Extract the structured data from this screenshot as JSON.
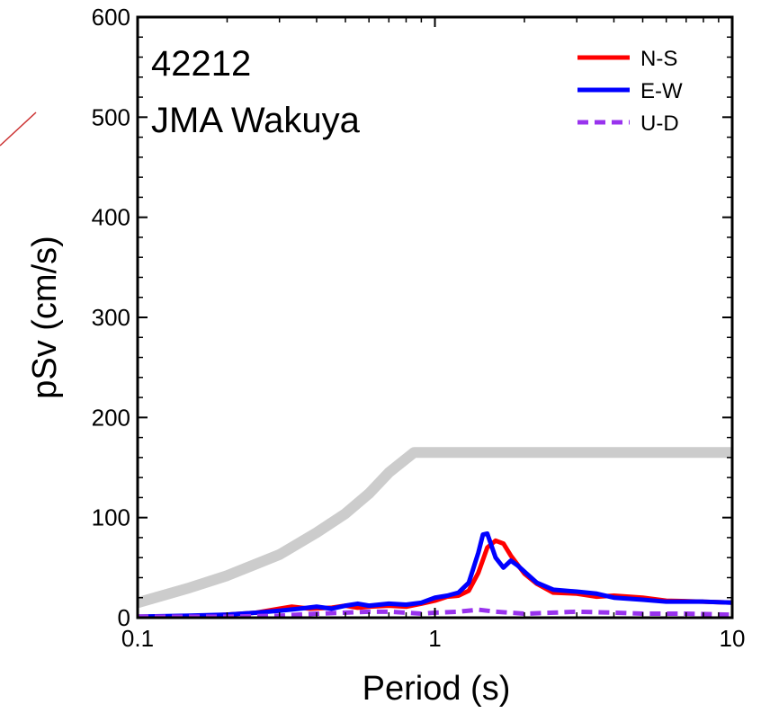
{
  "chart_data": {
    "type": "line",
    "title": "42212",
    "subtitle": "JMA Wakuya",
    "xlabel": "Period (s)",
    "ylabel": "pSv (cm/s)",
    "xscale": "log",
    "xlim": [
      0.1,
      10
    ],
    "ylim": [
      0,
      600
    ],
    "xticks": [
      0.1,
      1,
      10
    ],
    "xtick_labels": [
      "0.1",
      "1",
      "10"
    ],
    "yticks": [
      0,
      100,
      200,
      300,
      400,
      500,
      600
    ],
    "ytick_labels": [
      "0",
      "100",
      "200",
      "300",
      "400",
      "500",
      "600"
    ],
    "grid": false,
    "legend_position": "top-right",
    "reference_curve": {
      "color": "#cccccc",
      "x": [
        0.1,
        0.15,
        0.2,
        0.3,
        0.4,
        0.5,
        0.6,
        0.7,
        0.85,
        1,
        2,
        5,
        10
      ],
      "values": [
        15,
        30,
        42,
        63,
        85,
        104,
        124,
        145,
        165,
        165,
        165,
        165,
        165
      ]
    },
    "series": [
      {
        "name": "N-S",
        "color": "#ff0000",
        "dash": false,
        "x": [
          0.1,
          0.15,
          0.2,
          0.25,
          0.3,
          0.33,
          0.38,
          0.45,
          0.5,
          0.55,
          0.6,
          0.7,
          0.8,
          0.9,
          1.0,
          1.1,
          1.2,
          1.3,
          1.4,
          1.5,
          1.6,
          1.7,
          1.8,
          2.0,
          2.2,
          2.5,
          3.0,
          3.5,
          4.0,
          5.0,
          6.0,
          8.0,
          10.0
        ],
        "values": [
          1,
          1,
          3,
          5,
          9,
          11,
          9,
          10,
          12,
          10,
          11,
          12,
          11,
          14,
          17,
          21,
          22,
          27,
          45,
          70,
          77,
          74,
          62,
          44,
          34,
          25,
          24,
          21,
          22,
          20,
          17,
          16,
          15
        ]
      },
      {
        "name": "E-W",
        "color": "#0000ff",
        "dash": false,
        "x": [
          0.1,
          0.15,
          0.2,
          0.25,
          0.3,
          0.35,
          0.4,
          0.45,
          0.5,
          0.55,
          0.6,
          0.7,
          0.8,
          0.9,
          1.0,
          1.1,
          1.2,
          1.3,
          1.4,
          1.45,
          1.5,
          1.6,
          1.7,
          1.8,
          1.9,
          2.0,
          2.2,
          2.5,
          3.0,
          3.5,
          4.0,
          5.0,
          6.0,
          8.0,
          10.0
        ],
        "values": [
          1,
          2,
          3,
          5,
          7,
          9,
          11,
          9,
          12,
          14,
          12,
          14,
          13,
          15,
          20,
          22,
          25,
          35,
          65,
          83,
          84,
          60,
          50,
          57,
          52,
          46,
          35,
          28,
          26,
          24,
          20,
          18,
          16,
          16,
          15
        ]
      },
      {
        "name": "U-D",
        "color": "#9933ee",
        "dash": true,
        "x": [
          0.1,
          0.2,
          0.3,
          0.4,
          0.5,
          0.6,
          0.7,
          0.8,
          0.9,
          1.0,
          1.2,
          1.4,
          1.6,
          2.0,
          2.5,
          3.0,
          4.0,
          5.0,
          7.0,
          10.0
        ],
        "values": [
          1,
          1,
          2,
          4,
          5,
          6,
          6,
          5,
          4,
          5,
          6,
          8,
          6,
          4,
          5,
          6,
          5,
          4,
          4,
          3
        ]
      }
    ]
  }
}
